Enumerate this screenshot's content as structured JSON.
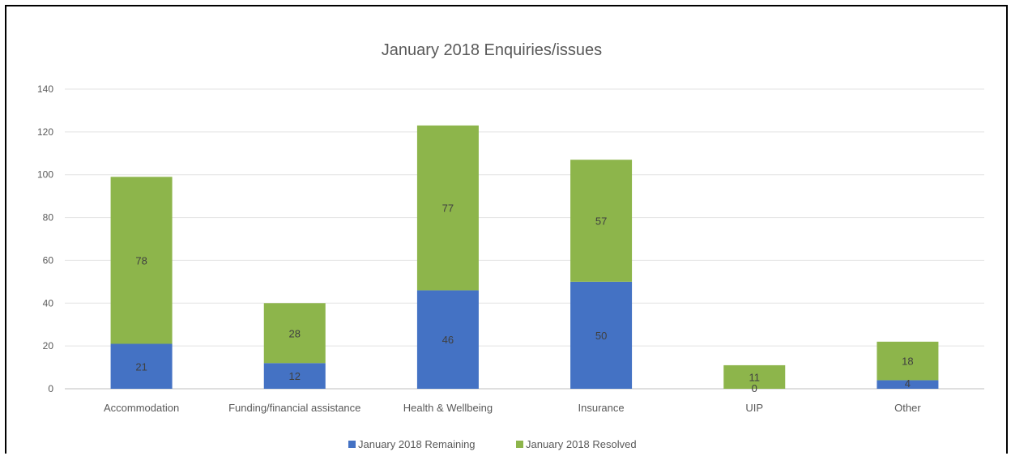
{
  "chart_data": {
    "type": "bar",
    "stacked": true,
    "title": "January 2018 Enquiries/issues",
    "categories": [
      "Accommodation",
      "Funding/financial assistance",
      "Health & Wellbeing",
      "Insurance",
      "UIP",
      "Other"
    ],
    "series": [
      {
        "name": "January 2018 Remaining",
        "values": [
          21,
          12,
          46,
          50,
          0,
          4
        ],
        "color": "#4472C4"
      },
      {
        "name": "January 2018 Resolved",
        "values": [
          78,
          28,
          77,
          57,
          11,
          18
        ],
        "color": "#8DB54B"
      }
    ],
    "ylim": [
      0,
      140
    ],
    "yticks": [
      0,
      20,
      40,
      60,
      80,
      100,
      120,
      140
    ],
    "grid": true,
    "legend_position": "bottom"
  }
}
